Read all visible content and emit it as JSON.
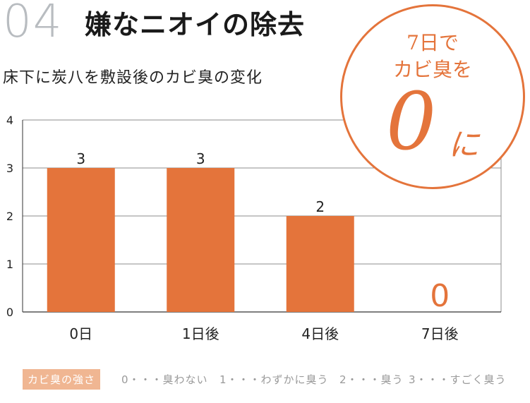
{
  "header": {
    "number": "04",
    "title": "嫌なニオイの除去"
  },
  "badge": {
    "line1": "7日で",
    "line2": "カビ臭を",
    "big": "0",
    "suffix": "に"
  },
  "colors": {
    "bar": "#e4743b",
    "grid": "#8c8c8c",
    "axis": "#333333",
    "legend_label_bg": "#f0b692"
  },
  "chart_data": {
    "type": "bar",
    "title": "床下に炭八を敷設後のカビ臭の変化",
    "categories": [
      "0日",
      "1日後",
      "4日後",
      "7日後"
    ],
    "values": [
      3,
      3,
      2,
      0
    ],
    "data_labels": [
      "3",
      "3",
      "2",
      "0"
    ],
    "ylim": [
      0,
      4
    ],
    "yticks": [
      "0",
      "1",
      "2",
      "3",
      "4"
    ],
    "grid": true
  },
  "legend": {
    "label": "カビ臭の強さ",
    "items": [
      "0・・・臭わない",
      "1・・・わずかに臭う",
      "2・・・臭う",
      "3・・・すごく臭う"
    ]
  }
}
